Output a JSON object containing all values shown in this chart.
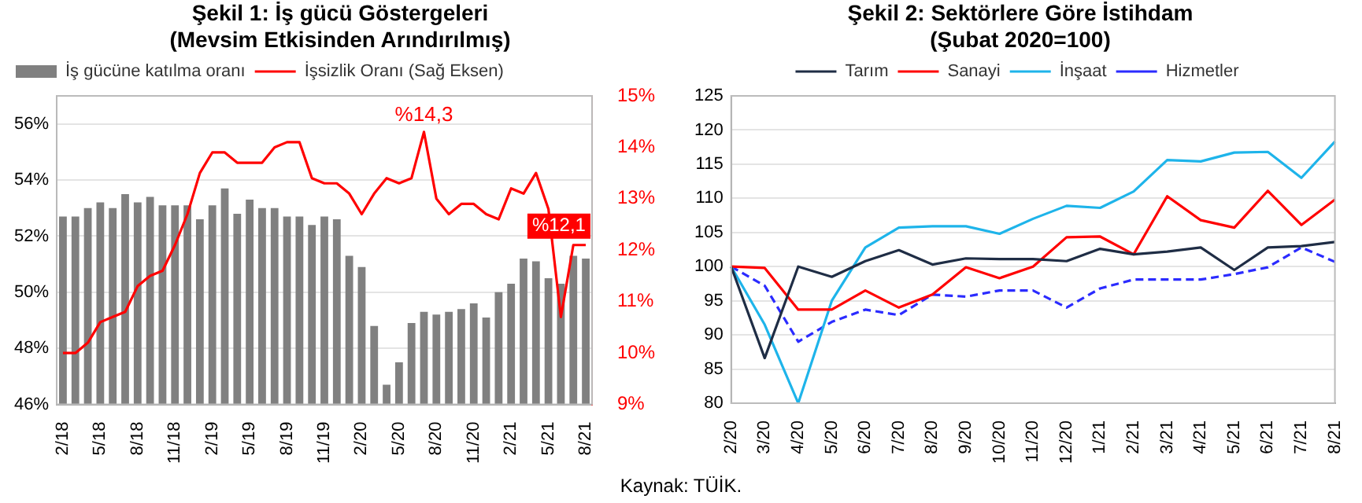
{
  "chart_data": [
    {
      "type": "bar",
      "title": "Şekil 1: İş gücü Göstergeleri",
      "subtitle": "(Mevsim Etkisinden Arındırılmış)",
      "categories": [
        "2/18",
        null,
        null,
        "5/18",
        null,
        null,
        "8/18",
        null,
        null,
        "11/18",
        null,
        null,
        "2/19",
        null,
        null,
        "5/19",
        null,
        null,
        "8/19",
        null,
        null,
        "11/19",
        null,
        null,
        "2/20",
        null,
        null,
        "5/20",
        null,
        null,
        "8/20",
        null,
        null,
        "11/20",
        null,
        null,
        "2/21",
        null,
        null,
        "5/21",
        null,
        null,
        "8/21"
      ],
      "series": [
        {
          "name": "İş gücüne katılma oranı",
          "type": "bar",
          "color": "#808080",
          "values": [
            52.7,
            52.7,
            53.0,
            53.2,
            53.0,
            53.5,
            53.2,
            53.4,
            53.1,
            53.1,
            53.1,
            52.6,
            53.1,
            53.7,
            52.8,
            53.3,
            53.0,
            53.0,
            52.7,
            52.7,
            52.4,
            52.7,
            52.6,
            51.3,
            50.9,
            48.8,
            46.7,
            47.5,
            48.9,
            49.3,
            49.2,
            49.3,
            49.4,
            49.6,
            49.1,
            50.0,
            50.3,
            51.2,
            51.1,
            50.5,
            50.3,
            51.3,
            51.2
          ]
        },
        {
          "name": "İşsizlik Oranı (Sağ Eksen)",
          "type": "line",
          "axis": "y2",
          "color": "#ff0000",
          "values": [
            10.0,
            10.0,
            10.2,
            10.6,
            10.7,
            10.8,
            11.3,
            11.5,
            11.6,
            12.1,
            12.7,
            13.5,
            13.9,
            13.9,
            13.7,
            13.7,
            13.7,
            14.0,
            14.1,
            14.1,
            13.4,
            13.3,
            13.3,
            13.1,
            12.7,
            13.1,
            13.4,
            13.3,
            13.4,
            14.3,
            13.0,
            12.7,
            12.9,
            12.9,
            12.7,
            12.6,
            13.2,
            13.1,
            13.5,
            12.8,
            10.7,
            12.1,
            12.1
          ],
          "value_labels": [
            null,
            null,
            null,
            null,
            null,
            null,
            null,
            null,
            null,
            null,
            null,
            null,
            null,
            null,
            null,
            null,
            null,
            null,
            null,
            null,
            null,
            null,
            null,
            null,
            null,
            null,
            null,
            null,
            null,
            "%14,3",
            null,
            null,
            null,
            null,
            null,
            null,
            null,
            null,
            null,
            null,
            null,
            null,
            "%12,1"
          ]
        }
      ],
      "ylim": [
        46,
        57
      ],
      "yticks": [
        {
          "value": 46,
          "label": "46%"
        },
        {
          "value": 48,
          "label": "48%"
        },
        {
          "value": 50,
          "label": "50%"
        },
        {
          "value": 52,
          "label": "52%"
        },
        {
          "value": 54,
          "label": "54%"
        },
        {
          "value": 56,
          "label": "56%"
        }
      ],
      "y2lim": [
        9,
        15
      ],
      "y2ticks": [
        {
          "value": 9,
          "label": "9%"
        },
        {
          "value": 10,
          "label": "10%"
        },
        {
          "value": 11,
          "label": "11%"
        },
        {
          "value": 12,
          "label": "12%"
        },
        {
          "value": 13,
          "label": "13%"
        },
        {
          "value": 14,
          "label": "14%"
        },
        {
          "value": 15,
          "label": "15%"
        }
      ],
      "grid": "y",
      "legend": "top left",
      "marker": "none"
    },
    {
      "type": "line",
      "title": "Şekil 2: Sektörlere Göre İstihdam",
      "subtitle": "(Şubat 2020=100)",
      "categories": [
        "2/20",
        "3/20",
        "4/20",
        "5/20",
        "6/20",
        "7/20",
        "8/20",
        "9/20",
        "10/20",
        "11/20",
        "12/20",
        "1/21",
        "2/21",
        "3/21",
        "4/21",
        "5/21",
        "6/21",
        "7/21",
        "8/21"
      ],
      "series": [
        {
          "name": "Tarım",
          "color": "#1f2d45",
          "values": [
            100,
            86.6,
            100,
            98.5,
            100.8,
            102.4,
            100.3,
            101.2,
            101.1,
            101.1,
            100.8,
            102.6,
            101.8,
            102.2,
            102.8,
            99.5,
            102.8,
            103.0,
            103.6
          ]
        },
        {
          "name": "Sanayi",
          "color": "#ff0000",
          "values": [
            100,
            99.8,
            93.7,
            93.7,
            96.5,
            94.0,
            95.9,
            99.9,
            98.3,
            100.0,
            104.3,
            104.4,
            101.8,
            110.3,
            106.8,
            105.7,
            111.1,
            106.1,
            109.8
          ]
        },
        {
          "name": "İnşaat",
          "color": "#1eb4ea",
          "values": [
            100,
            91.5,
            80,
            95.0,
            102.8,
            105.7,
            105.9,
            105.9,
            104.8,
            107.0,
            108.9,
            108.6,
            111.0,
            115.6,
            115.4,
            116.7,
            116.8,
            113.0,
            118.3
          ]
        },
        {
          "name": "Hizmetler",
          "color": "#2b2bff",
          "line_style": "dashed",
          "values": [
            100,
            97.2,
            89.0,
            91.9,
            93.7,
            92.9,
            95.9,
            95.6,
            96.5,
            96.5,
            94.0,
            96.8,
            98.1,
            98.1,
            98.1,
            98.9,
            99.9,
            102.8,
            100.7
          ]
        }
      ],
      "ylim": [
        80,
        125
      ],
      "yticks": [
        80,
        85,
        90,
        95,
        100,
        105,
        110,
        115,
        120,
        125
      ],
      "grid": "y",
      "legend": "top",
      "marker": "none",
      "line_style": "solid",
      "annotations": [
        "Kaynak: TÜİK."
      ]
    }
  ]
}
